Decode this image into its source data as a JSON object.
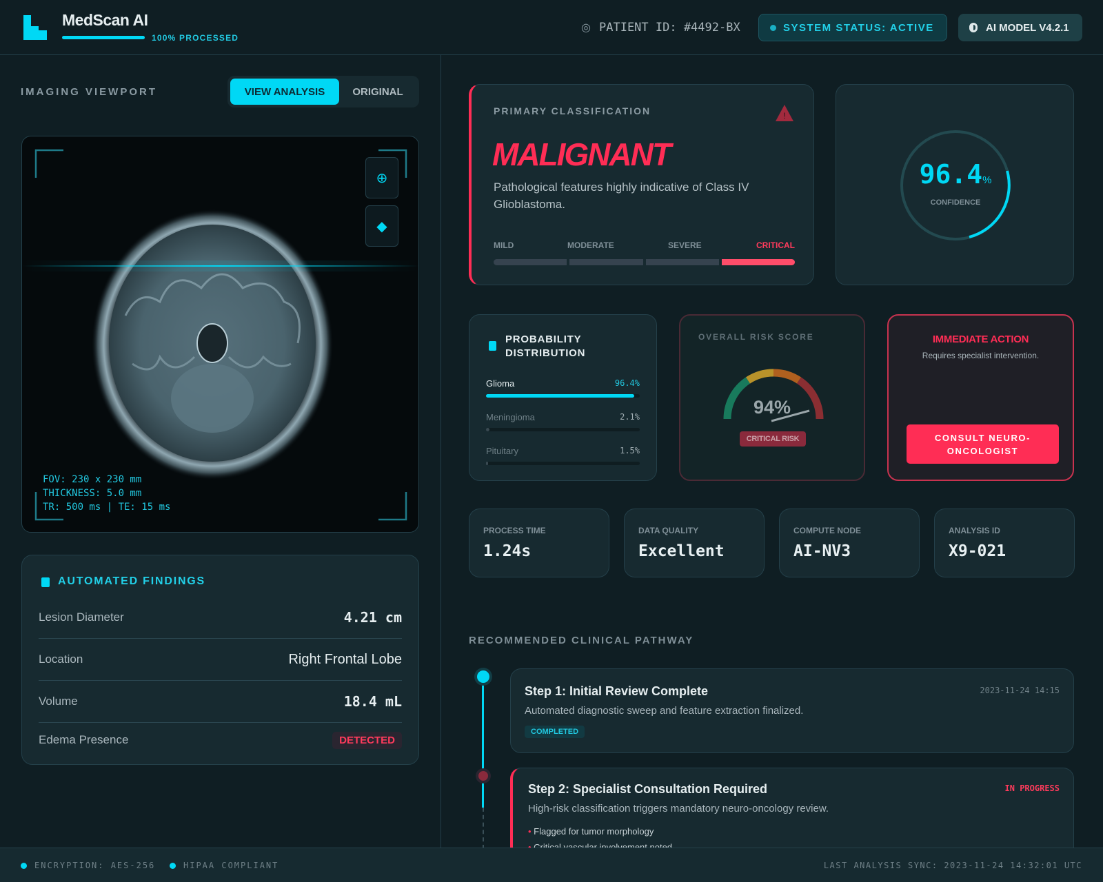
{
  "header": {
    "app_title": "MedScan AI",
    "processed_label": "100% PROCESSED",
    "processed_percent": 100,
    "patient_id": "PATIENT ID: #4492-BX",
    "system_status": "SYSTEM STATUS: ACTIVE",
    "model_version": "AI MODEL V4.2.1"
  },
  "viewport": {
    "title": "IMAGING VIEWPORT",
    "toggle": [
      "VIEW ANALYSIS",
      "ORIGINAL"
    ],
    "active_toggle": "VIEW ANALYSIS",
    "tools": [
      "zoom-in-icon",
      "layers-icon"
    ],
    "meta": [
      "FOV: 230 x 230 mm",
      "THICKNESS: 5.0 mm",
      "TR: 500 ms | TE: 15 ms"
    ]
  },
  "findings": {
    "title": "AUTOMATED FINDINGS",
    "rows": [
      {
        "label": "Lesion Diameter",
        "value": "4.21 cm"
      },
      {
        "label": "Location",
        "value": "Right Frontal Lobe"
      },
      {
        "label": "Volume",
        "value": "18.4 mL"
      },
      {
        "label": "Edema Presence",
        "value": "DETECTED"
      }
    ]
  },
  "classification": {
    "title": "PRIMARY CLASSIFICATION",
    "result": "MALIGNANT",
    "description": "Pathological features highly indicative of Class IV Glioblastoma.",
    "severity_levels": [
      "MILD",
      "MODERATE",
      "SEVERE",
      "CRITICAL"
    ],
    "active_severity": "CRITICAL"
  },
  "confidence": {
    "value": "96.4",
    "unit": "%",
    "label": "CONFIDENCE"
  },
  "probability": {
    "title": "PROBABILITY DISTRIBUTION",
    "items": [
      {
        "name": "Glioma",
        "percent_label": "96.4%",
        "percent": 96.4
      },
      {
        "name": "Meningioma",
        "percent_label": "2.1%",
        "percent": 2.1
      },
      {
        "name": "Pituitary",
        "percent_label": "1.5%",
        "percent": 1.5
      }
    ]
  },
  "risk": {
    "title": "OVERALL RISK SCORE",
    "value": "94%",
    "badge": "CRITICAL RISK"
  },
  "action": {
    "title": "IMMEDIATE ACTION",
    "subtitle": "Requires specialist intervention.",
    "button": "CONSULT NEURO-ONCOLOGIST"
  },
  "stats": [
    {
      "label": "PROCESS TIME",
      "value": "1.24s"
    },
    {
      "label": "DATA QUALITY",
      "value": "Excellent"
    },
    {
      "label": "COMPUTE NODE",
      "value": "AI-NV3"
    },
    {
      "label": "ANALYSIS ID",
      "value": "X9-021"
    }
  ],
  "pathway": {
    "title": "RECOMMENDED CLINICAL PATHWAY",
    "steps": [
      {
        "title": "Step 1: Initial Review Complete",
        "description": "Automated diagnostic sweep and feature extraction finalized.",
        "timestamp": "2023-11-24 14:15",
        "status": "COMPLETED"
      },
      {
        "title": "Step 2: Specialist Consultation Required",
        "description": "High-risk classification triggers mandatory neuro-oncology review.",
        "status": "IN PROGRESS",
        "bullets": [
          "Flagged for tumor morphology",
          "Critical vascular involvement noted"
        ]
      }
    ]
  },
  "footer": {
    "encryption": "ENCRYPTION: AES-256",
    "compliance": "HIPAA COMPLIANT",
    "last_sync": "LAST ANALYSIS SYNC: 2023-11-24 14:32:01 UTC"
  },
  "colors": {
    "accent": "#00d8f5",
    "danger": "#ff2d55",
    "background": "#0f1e23",
    "card": "#172a30"
  }
}
